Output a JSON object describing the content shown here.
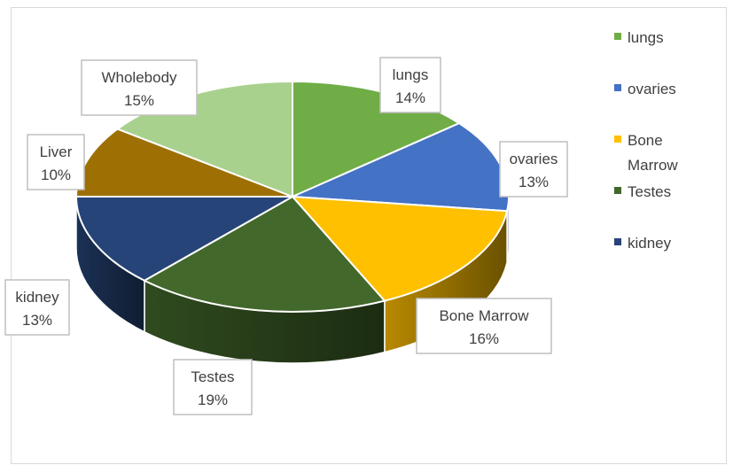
{
  "chart_data": {
    "type": "pie",
    "title": "",
    "slices": [
      {
        "name": "lungs",
        "label": "lungs",
        "value": 14,
        "value_label": "14%",
        "color": "#70AD47"
      },
      {
        "name": "ovaries",
        "label": "ovaries",
        "value": 13,
        "value_label": "13%",
        "color": "#4472C4"
      },
      {
        "name": "Bone Marrow",
        "label": "Bone Marrow",
        "value": 16,
        "value_label": "16%",
        "color": "#FFC000"
      },
      {
        "name": "Testes",
        "label": "Testes",
        "value": 19,
        "value_label": "19%",
        "color": "#43682B"
      },
      {
        "name": "kidney",
        "label": "kidney",
        "value": 13,
        "value_label": "13%",
        "color": "#264478"
      },
      {
        "name": "Liver",
        "label": "Liver",
        "value": 10,
        "value_label": "10%",
        "color": "#9E7004"
      },
      {
        "name": "Wholebody",
        "label": "Wholebody",
        "value": 15,
        "value_label": "15%",
        "color": "#A9D18E"
      }
    ],
    "legend": {
      "position": "right",
      "entries": [
        {
          "lines": [
            "lungs"
          ],
          "color": "#70AD47"
        },
        {
          "lines": [
            "ovaries"
          ],
          "color": "#4472C4"
        },
        {
          "lines": [
            "Bone",
            "Marrow"
          ],
          "color": "#FFC000"
        },
        {
          "lines": [
            "Testes"
          ],
          "color": "#43682B"
        },
        {
          "lines": [
            "kidney"
          ],
          "color": "#264478"
        }
      ]
    },
    "style": "3d"
  }
}
